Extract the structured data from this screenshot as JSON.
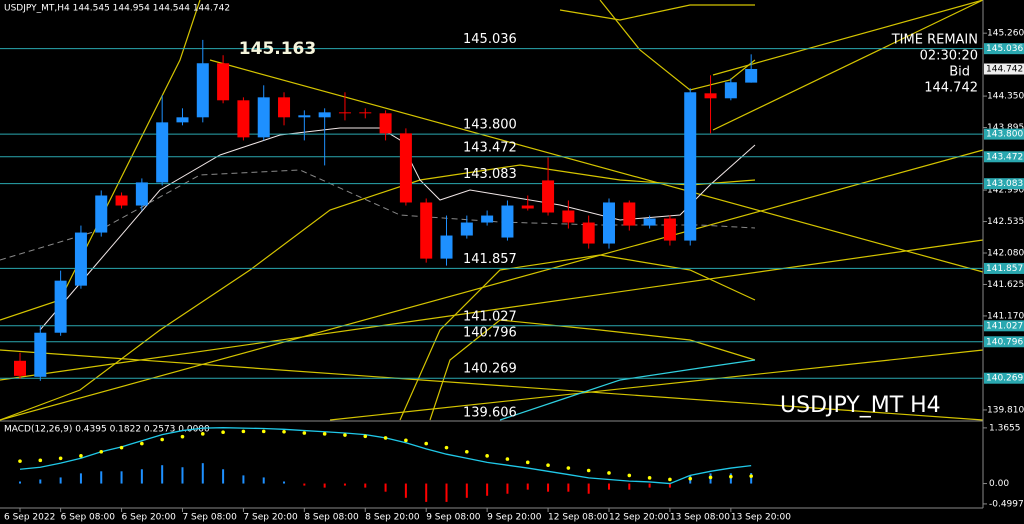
{
  "chart_data": {
    "type": "candlestick",
    "title": "USDJPY_MT,H4  144.545 144.954 144.544 144.742",
    "watermark": "USDJPY_MT  H4",
    "info": {
      "label": "TIME REMAIN",
      "time": "02:30:20",
      "bid_label": "Bid"
    },
    "bid": 144.742,
    "max_label": 145.163,
    "categories": [
      "6 Sep 2022",
      null,
      "6 Sep 08:00",
      null,
      null,
      "6 Sep 20:00",
      null,
      null,
      "7 Sep 08:00",
      null,
      null,
      "7 Sep 20:00",
      null,
      null,
      "8 Sep 08:00",
      null,
      null,
      "8 Sep 20:00",
      null,
      null,
      "9 Sep 08:00",
      null,
      null,
      "9 Sep 20:00",
      null,
      null,
      "12 Sep 08:00",
      null,
      null,
      "12 Sep 20:00",
      null,
      null,
      "13 Sep 08:00",
      null,
      null,
      "13 Sep 20:00",
      null
    ],
    "open": [
      140.521,
      140.289,
      140.927,
      141.608,
      142.376,
      142.912,
      142.767,
      143.101,
      143.97,
      144.043,
      144.825,
      144.289,
      143.753,
      144.332,
      144.043,
      144.043,
      144.115,
      144.115,
      144.101,
      143.811,
      142.811,
      141.999,
      142.333,
      142.521,
      142.304,
      142.767,
      143.13,
      142.695,
      142.521,
      142.217,
      142.811,
      142.477,
      142.579,
      142.26,
      144.39,
      144.318,
      144.545
    ],
    "high": [
      140.637,
      141.028,
      141.825,
      142.477,
      142.985,
      142.956,
      143.159,
      144.361,
      144.173,
      145.163,
      144.941,
      144.332,
      144.506,
      144.405,
      144.144,
      144.173,
      144.405,
      144.173,
      144.144,
      143.883,
      142.869,
      142.622,
      142.622,
      142.695,
      142.84,
      142.912,
      143.463,
      142.84,
      142.622,
      142.869,
      142.84,
      142.622,
      142.622,
      144.463,
      144.651,
      144.608,
      144.954
    ],
    "low": [
      140.26,
      140.231,
      140.883,
      141.564,
      142.318,
      142.724,
      142.695,
      143.057,
      143.927,
      143.97,
      144.246,
      143.709,
      143.709,
      143.927,
      143.709,
      143.347,
      143.999,
      144.028,
      143.709,
      142.767,
      141.941,
      141.898,
      142.289,
      142.477,
      142.26,
      142.695,
      142.622,
      142.434,
      142.144,
      142.144,
      142.405,
      142.434,
      142.188,
      142.188,
      143.811,
      144.289,
      144.544
    ],
    "close": [
      140.303,
      140.927,
      141.68,
      142.376,
      142.912,
      142.767,
      143.101,
      143.97,
      144.043,
      144.825,
      144.289,
      143.753,
      144.332,
      144.043,
      144.072,
      144.115,
      144.101,
      144.101,
      143.811,
      142.811,
      141.999,
      142.333,
      142.521,
      142.622,
      142.767,
      142.724,
      142.666,
      142.521,
      142.217,
      142.811,
      142.477,
      142.579,
      142.26,
      144.405,
      144.318,
      144.55,
      144.742
    ],
    "up_color": "#1e90ff",
    "down_color": "#ff0000",
    "ylim": [
      139.65,
      145.74
    ],
    "yticks": [
      {
        "value": 145.26,
        "label": "145.260"
      },
      {
        "value": 144.35,
        "label": "144.350"
      },
      {
        "value": 143.895,
        "label": "143.895"
      },
      {
        "value": 142.99,
        "label": "142.990"
      },
      {
        "value": 142.535,
        "label": "142.535"
      },
      {
        "value": 142.08,
        "label": "142.080"
      },
      {
        "value": 141.625,
        "label": "141.625"
      },
      {
        "value": 141.17,
        "label": "141.170"
      },
      {
        "value": 139.81,
        "label": "139.810"
      }
    ],
    "levels": [
      {
        "value": 145.036,
        "label": "145.036"
      },
      {
        "value": 143.8,
        "label": "143.800"
      },
      {
        "value": 143.472,
        "label": "143.472"
      },
      {
        "value": 143.083,
        "label": "143.083"
      },
      {
        "value": 141.857,
        "label": "141.857"
      },
      {
        "value": 141.027,
        "label": "141.027"
      },
      {
        "value": 140.796,
        "label": "140.796"
      },
      {
        "value": 140.269,
        "label": "140.269"
      },
      {
        "value": 139.606,
        "label": "139.606"
      }
    ],
    "level_color": "#2aa8b0",
    "macd": {
      "title": "MACD(12,26,9) 0.4395 0.1822 0.2573 0.0000",
      "ylim": [
        -0.6,
        1.51
      ],
      "yticks": [
        1.3655,
        {
          "value": 0,
          "label": "0.00"
        },
        -0.4997
      ],
      "histogram": [
        0.05,
        0.1,
        0.15,
        0.25,
        0.3,
        0.3,
        0.35,
        0.45,
        0.4,
        0.5,
        0.35,
        0.2,
        0.15,
        0.05,
        -0.05,
        -0.1,
        -0.05,
        -0.1,
        -0.2,
        -0.35,
        -0.45,
        -0.45,
        -0.35,
        -0.3,
        -0.25,
        -0.15,
        -0.2,
        -0.2,
        -0.25,
        -0.15,
        -0.15,
        -0.1,
        -0.1,
        0.2,
        0.25,
        0.25,
        0.2573
      ],
      "main": [
        0.35,
        0.4,
        0.5,
        0.62,
        0.78,
        0.9,
        1.05,
        1.2,
        1.3,
        1.36,
        1.37,
        1.36,
        1.35,
        1.33,
        1.3,
        1.27,
        1.24,
        1.2,
        1.12,
        1.0,
        0.85,
        0.72,
        0.62,
        0.52,
        0.45,
        0.38,
        0.3,
        0.22,
        0.14,
        0.1,
        0.06,
        0.04,
        0.0,
        0.2,
        0.3,
        0.38,
        0.4395
      ],
      "signal": [
        0.55,
        0.57,
        0.62,
        0.68,
        0.78,
        0.88,
        0.98,
        1.08,
        1.15,
        1.22,
        1.26,
        1.28,
        1.28,
        1.27,
        1.24,
        1.22,
        1.19,
        1.16,
        1.12,
        1.06,
        0.98,
        0.88,
        0.78,
        0.68,
        0.6,
        0.52,
        0.45,
        0.38,
        0.32,
        0.26,
        0.2,
        0.14,
        0.1,
        0.12,
        0.15,
        0.17,
        0.1822
      ],
      "main_color": "#20c8e8",
      "signal_color": "#ffff00"
    }
  }
}
